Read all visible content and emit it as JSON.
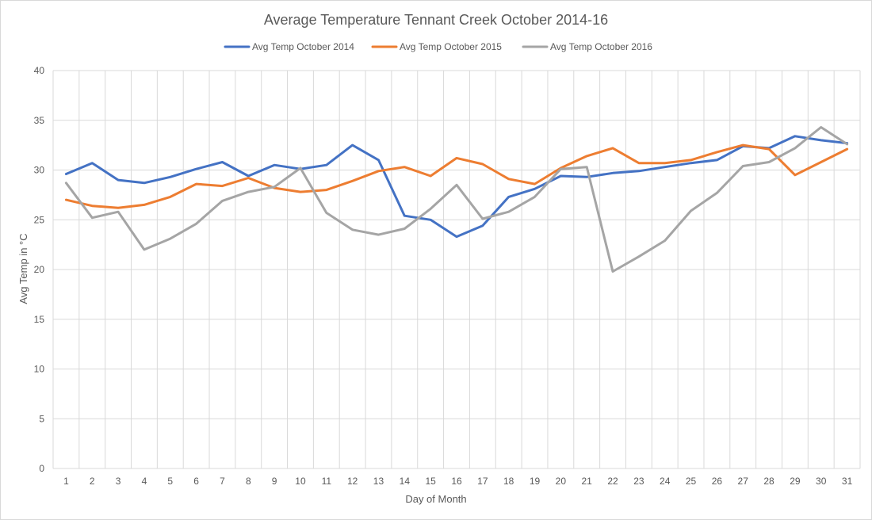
{
  "chart_data": {
    "type": "line",
    "title": "Average Temperature Tennant Creek October 2014-16",
    "xlabel": "Day of Month",
    "ylabel": "Avg Temp in °C",
    "ylim": [
      0,
      40
    ],
    "yticks": [
      "0",
      "5",
      "10",
      "15",
      "20",
      "25",
      "30",
      "35",
      "40"
    ],
    "categories": [
      "1",
      "2",
      "3",
      "4",
      "5",
      "6",
      "7",
      "8",
      "9",
      "10",
      "11",
      "12",
      "13",
      "14",
      "15",
      "16",
      "17",
      "18",
      "19",
      "20",
      "21",
      "22",
      "23",
      "24",
      "25",
      "26",
      "27",
      "28",
      "29",
      "30",
      "31"
    ],
    "grid": true,
    "legend_position": "top",
    "series": [
      {
        "name": "Avg Temp October 2014",
        "color": "#4472c4",
        "values": [
          29.6,
          30.7,
          29.0,
          28.7,
          29.3,
          30.1,
          30.8,
          29.4,
          30.5,
          30.1,
          30.5,
          32.5,
          31.0,
          25.4,
          25.0,
          23.3,
          24.4,
          27.3,
          28.1,
          29.4,
          29.3,
          29.7,
          29.9,
          30.3,
          30.7,
          31.0,
          32.4,
          32.2,
          33.4,
          33.0,
          32.7
        ]
      },
      {
        "name": "Avg Temp October 2015",
        "color": "#ed7d31",
        "values": [
          27.0,
          26.4,
          26.2,
          26.5,
          27.3,
          28.6,
          28.4,
          29.2,
          28.2,
          27.8,
          28.0,
          28.9,
          29.9,
          30.3,
          29.4,
          31.2,
          30.6,
          29.1,
          28.6,
          30.2,
          31.4,
          32.2,
          30.7,
          30.7,
          31.0,
          31.8,
          32.5,
          32.1,
          29.5,
          30.8,
          32.1
        ]
      },
      {
        "name": "Avg Temp October 2016",
        "color": "#a5a5a5",
        "values": [
          28.7,
          25.2,
          25.8,
          22.0,
          23.1,
          24.6,
          26.9,
          27.8,
          28.3,
          30.2,
          25.7,
          24.0,
          23.5,
          24.1,
          26.1,
          28.5,
          25.1,
          25.8,
          27.3,
          30.1,
          30.3,
          19.8,
          21.3,
          22.9,
          25.9,
          27.7,
          30.4,
          30.8,
          32.2,
          34.3,
          32.6
        ]
      }
    ]
  }
}
